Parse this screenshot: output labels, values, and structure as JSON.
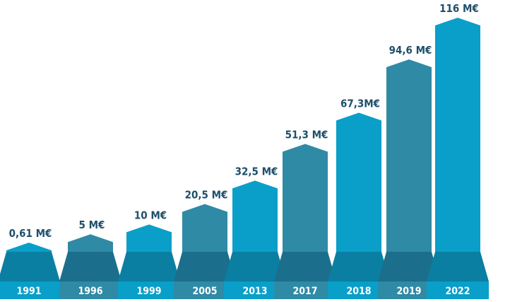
{
  "chart_data": {
    "type": "bar",
    "title": "",
    "xlabel": "",
    "ylabel": "",
    "unit": "M€",
    "categories": [
      "1991",
      "1996",
      "1999",
      "2005",
      "2013",
      "2017",
      "2018",
      "2019",
      "2022"
    ],
    "values": [
      0.61,
      5,
      10,
      20.5,
      32.5,
      51.3,
      67.3,
      94.6,
      116
    ],
    "value_labels": [
      "0,61 M€",
      "5 M€",
      "10 M€",
      "20,5 M€",
      "32,5 M€",
      "51,3 M€",
      "67,3M€",
      "94,6 M€",
      "116 M€"
    ],
    "colors": {
      "bright": "#099fc8",
      "muted": "#2f8aa6",
      "bright_base": "#0a7fa2",
      "muted_base": "#1b6f8c",
      "bright_label_band": "#099fc8",
      "muted_label_band": "#2f8aa6",
      "label_text": "#1e4f6b"
    },
    "bar_color_pattern": [
      "bright",
      "muted",
      "bright",
      "muted",
      "bright",
      "muted",
      "bright",
      "muted",
      "bright"
    ]
  }
}
